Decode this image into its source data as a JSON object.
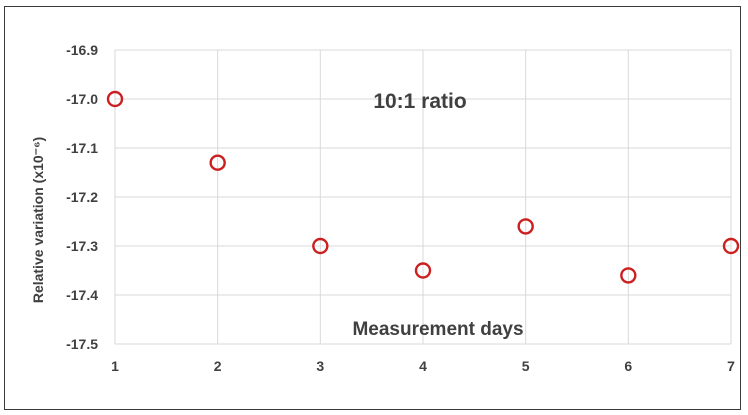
{
  "chart_data": {
    "type": "scatter",
    "title": "10:1 ratio",
    "xlabel": "Measurement days",
    "ylabel": "Relative variation (x10⁻⁶)",
    "x": [
      1,
      2,
      3,
      4,
      5,
      6,
      7
    ],
    "y": [
      -17.0,
      -17.13,
      -17.3,
      -17.35,
      -17.26,
      -17.36,
      -17.3
    ],
    "xlim": [
      1,
      7
    ],
    "ylim": [
      -17.5,
      -16.9
    ],
    "x_ticks": [
      "1",
      "2",
      "3",
      "4",
      "5",
      "6",
      "7"
    ],
    "y_ticks": [
      "-16.9",
      "-17.0",
      "-17.1",
      "-17.2",
      "-17.3",
      "-17.4",
      "-17.5"
    ],
    "grid": true,
    "legend": "none",
    "marker": "open-circle",
    "colors": {
      "marker": "#cc1f1f",
      "grid": "#d9d9d9",
      "text": "#404040"
    }
  }
}
